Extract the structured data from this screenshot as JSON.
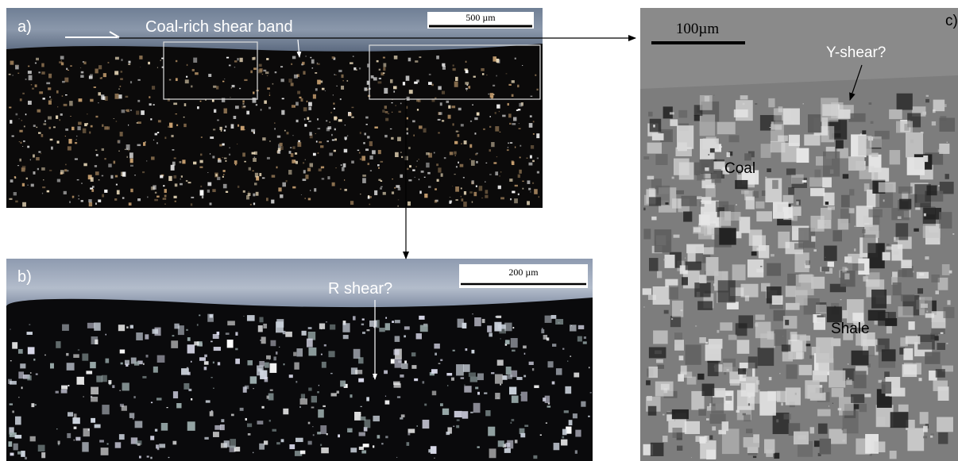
{
  "panel_a": {
    "label": "a)",
    "annotation": "Coal-rich shear band",
    "scale_bar": "500 µm"
  },
  "panel_b": {
    "label": "b)",
    "annotation": "R shear?",
    "scale_bar": "200 µm"
  },
  "panel_c": {
    "label": "c)",
    "scale_bar": "100µm",
    "annotations": [
      "Y-shear?",
      "Coal",
      "Shale"
    ]
  }
}
